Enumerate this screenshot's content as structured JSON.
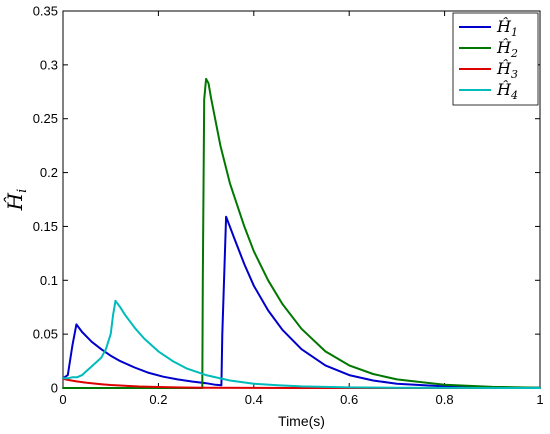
{
  "chart_data": {
    "type": "line",
    "xlabel": "Time(s)",
    "ylabel": "Ĥ",
    "ylabel_sub": "i",
    "xlim": [
      0,
      1
    ],
    "ylim": [
      0,
      0.35
    ],
    "xticks": [
      0,
      0.2,
      0.4,
      0.6,
      0.8,
      1
    ],
    "yticks": [
      0,
      0.05,
      0.1,
      0.15,
      0.2,
      0.25,
      0.3,
      0.35
    ],
    "xtick_labels": [
      "0",
      "0.2",
      "0.4",
      "0.6",
      "0.8",
      "1"
    ],
    "ytick_labels": [
      "0",
      "0.05",
      "0.1",
      "0.15",
      "0.2",
      "0.25",
      "0.3",
      "0.35"
    ],
    "grid": false,
    "legend_position": "top-right",
    "series": [
      {
        "name": "Ĥ",
        "sub": "1",
        "color": "#0000cc",
        "x": [
          0.0,
          0.01,
          0.02,
          0.028,
          0.04,
          0.06,
          0.08,
          0.1,
          0.12,
          0.15,
          0.18,
          0.21,
          0.24,
          0.27,
          0.3,
          0.32,
          0.332,
          0.334,
          0.342,
          0.36,
          0.38,
          0.4,
          0.43,
          0.46,
          0.5,
          0.55,
          0.6,
          0.65,
          0.7,
          0.8,
          0.9,
          1.0
        ],
        "y": [
          0.009,
          0.012,
          0.04,
          0.059,
          0.052,
          0.043,
          0.036,
          0.03,
          0.025,
          0.019,
          0.014,
          0.0105,
          0.008,
          0.006,
          0.0045,
          0.003,
          0.0025,
          0.05,
          0.159,
          0.138,
          0.115,
          0.095,
          0.072,
          0.054,
          0.036,
          0.021,
          0.012,
          0.007,
          0.004,
          0.0015,
          0.0005,
          0.0002
        ]
      },
      {
        "name": "Ĥ",
        "sub": "2",
        "color": "#007700",
        "x": [
          0.0,
          0.1,
          0.2,
          0.28,
          0.292,
          0.293,
          0.296,
          0.3,
          0.305,
          0.31,
          0.33,
          0.35,
          0.38,
          0.4,
          0.43,
          0.46,
          0.5,
          0.55,
          0.6,
          0.65,
          0.7,
          0.8,
          0.9,
          1.0
        ],
        "y": [
          0.0,
          0.0,
          0.0,
          0.0,
          0.0,
          0.1,
          0.268,
          0.287,
          0.283,
          0.27,
          0.225,
          0.19,
          0.15,
          0.127,
          0.1,
          0.078,
          0.055,
          0.034,
          0.021,
          0.013,
          0.008,
          0.003,
          0.001,
          0.0003
        ]
      },
      {
        "name": "Ĥ",
        "sub": "3",
        "color": "#dd0000",
        "x": [
          0.0,
          0.01,
          0.03,
          0.05,
          0.08,
          0.1,
          0.13,
          0.16,
          0.2,
          0.25,
          0.3,
          0.4,
          0.5,
          0.6,
          0.8,
          1.0
        ],
        "y": [
          0.0085,
          0.0075,
          0.006,
          0.0048,
          0.0035,
          0.0028,
          0.002,
          0.0014,
          0.0009,
          0.0005,
          0.0003,
          0.0001,
          0.0,
          0.0,
          0.0,
          0.0
        ]
      },
      {
        "name": "Ĥ",
        "sub": "4",
        "color": "#00bbbb",
        "x": [
          0.0,
          0.01,
          0.02,
          0.03,
          0.04,
          0.05,
          0.06,
          0.07,
          0.08,
          0.09,
          0.1,
          0.105,
          0.11,
          0.12,
          0.13,
          0.14,
          0.15,
          0.17,
          0.2,
          0.23,
          0.26,
          0.3,
          0.35,
          0.4,
          0.45,
          0.5,
          0.6,
          0.7,
          0.8,
          1.0
        ],
        "y": [
          0.009,
          0.009,
          0.01,
          0.01,
          0.012,
          0.016,
          0.02,
          0.024,
          0.028,
          0.036,
          0.05,
          0.068,
          0.081,
          0.075,
          0.068,
          0.062,
          0.056,
          0.046,
          0.034,
          0.025,
          0.018,
          0.012,
          0.007,
          0.004,
          0.0025,
          0.0015,
          0.0006,
          0.0002,
          0.0001,
          0.0
        ]
      }
    ]
  }
}
